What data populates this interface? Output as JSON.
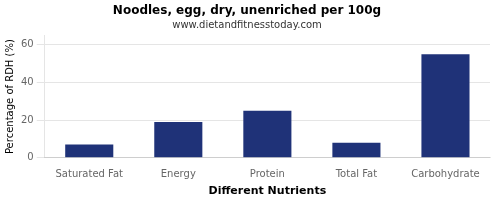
{
  "chart_data": {
    "type": "bar",
    "title": "Noodles, egg, dry, unenriched per 100g",
    "subtitle": "www.dietandfitnesstoday.com",
    "xlabel": "Different Nutrients",
    "ylabel": "Percentage of RDH (%)",
    "categories": [
      "Saturated Fat",
      "Energy",
      "Protein",
      "Total Fat",
      "Carbohydrate"
    ],
    "values": [
      7,
      19,
      25,
      8,
      55
    ],
    "color": "#1f3278",
    "ylim": [
      0,
      65
    ],
    "yticks": [
      0,
      20,
      40,
      60
    ],
    "grid": true
  }
}
